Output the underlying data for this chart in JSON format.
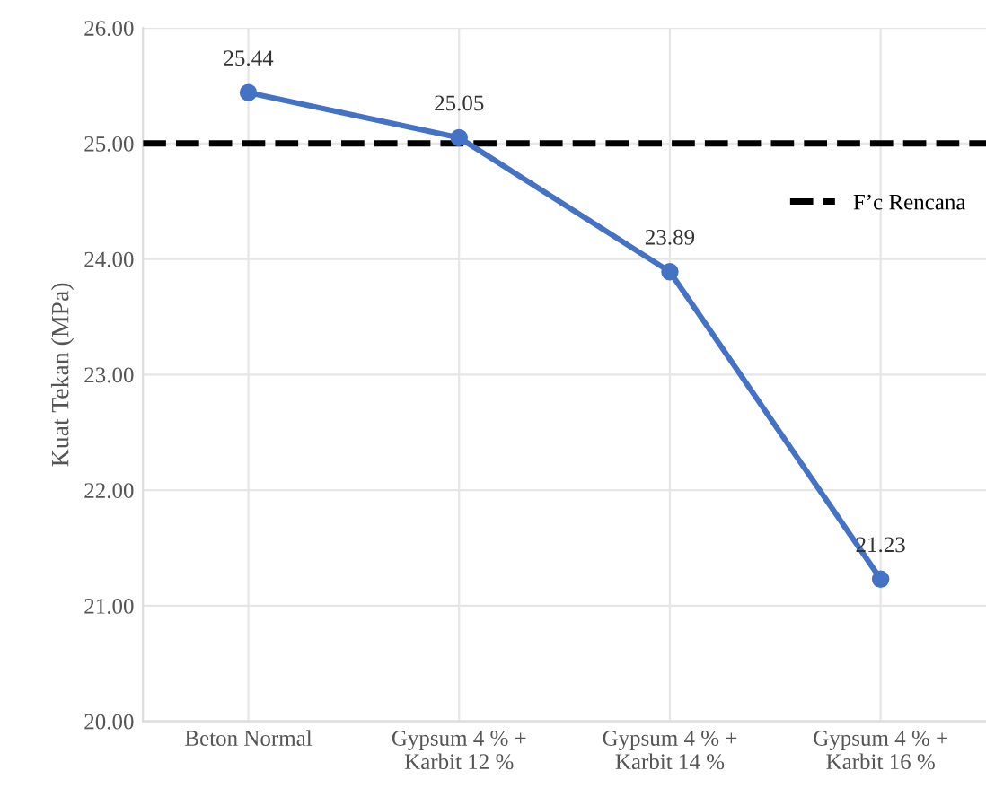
{
  "chart_data": {
    "type": "line",
    "ylabel": "Kuat Tekan (MPa)",
    "categories": [
      "Beton Normal",
      "Gypsum 4 % +\nKarbit 12 %",
      "Gypsum 4 % +\nKarbit 14 %",
      "Gypsum 4 % +\nKarbit 16 %"
    ],
    "series": [
      {
        "color": "#4472c4",
        "values": [
          25.44,
          25.05,
          23.89,
          21.23
        ]
      }
    ],
    "ylim": [
      20,
      26
    ],
    "yticks": [
      {
        "value": 20,
        "label": "20.00"
      },
      {
        "value": 21,
        "label": "21.00"
      },
      {
        "value": 22,
        "label": "22.00"
      },
      {
        "value": 23,
        "label": "23.00"
      },
      {
        "value": 24,
        "label": "24.00"
      },
      {
        "value": 25,
        "label": "25.00"
      },
      {
        "value": 26,
        "label": "26.00"
      }
    ],
    "ref_lines": [
      {
        "axis": "y",
        "value": 25,
        "label": "F’c Rencana",
        "color": "#000000",
        "line_style": "dashed"
      }
    ],
    "data_labels": true,
    "grid": true,
    "legend": "top right",
    "marker": "circle",
    "line_style": "solid"
  }
}
